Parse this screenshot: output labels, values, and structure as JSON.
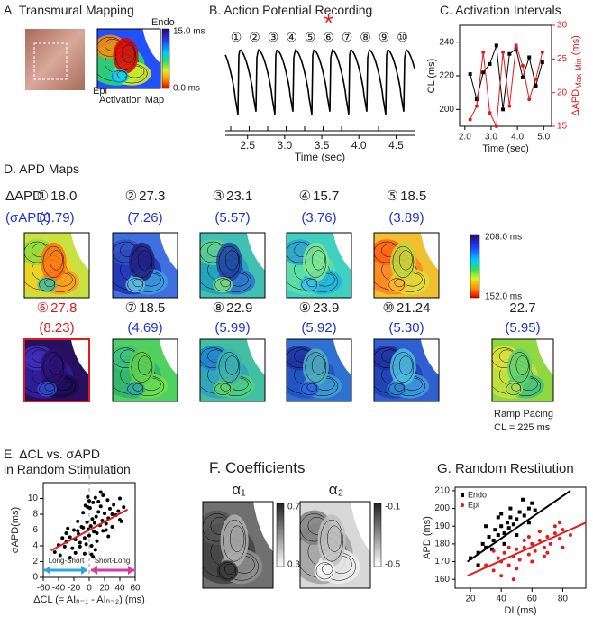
{
  "panel_a": {
    "title": "A. Transmural Mapping",
    "endo": "Endo",
    "epi": "Epi",
    "map_label": "Activation Map",
    "scale_max": "15.0 ms",
    "scale_min": "0.0 ms"
  },
  "panel_b": {
    "title": "B. Action Potential Recording",
    "beats": [
      "①",
      "②",
      "③",
      "④",
      "⑤",
      "⑥",
      "⑦",
      "⑧",
      "⑨",
      "⑩"
    ],
    "marker": "*",
    "marker_beat": 5,
    "xlim": [
      2.2,
      4.75
    ],
    "xticks": [
      2.5,
      {
        "value": 3,
        "label": "3.0"
      },
      3.5,
      {
        "value": 4,
        "label": "4.0"
      },
      4.5
    ],
    "xlabel": "Time (sec)"
  },
  "panel_d": {
    "title": "D. APD Maps",
    "row_label": "ΔAPD",
    "row_sublabel": "(σAPD)",
    "scale_max": "208.0 ms",
    "scale_min": "152.0 ms",
    "maps": [
      {
        "beat": "①",
        "apd": "18.0",
        "sigma": "(3.79)"
      },
      {
        "beat": "②",
        "apd": "27.3",
        "sigma": "(7.26)"
      },
      {
        "beat": "③",
        "apd": "23.1",
        "sigma": "(5.57)"
      },
      {
        "beat": "④",
        "apd": "15.7",
        "sigma": "(3.76)"
      },
      {
        "beat": "⑤",
        "apd": "18.5",
        "sigma": "(3.89)"
      },
      {
        "beat": "⑥",
        "apd": "27.8",
        "sigma": "(8.23)",
        "highlight": true
      },
      {
        "beat": "⑦",
        "apd": "18.5",
        "sigma": "(4.69)"
      },
      {
        "beat": "⑧",
        "apd": "22.9",
        "sigma": "(5.99)"
      },
      {
        "beat": "⑨",
        "apd": "23.9",
        "sigma": "(5.92)"
      },
      {
        "beat": "⑩",
        "apd": "21.24",
        "sigma": "(5.30)"
      }
    ],
    "ramp": {
      "apd": "22.7",
      "sigma": "(5.95)",
      "label": "Ramp Pacing",
      "cl": "CL = 225 ms"
    }
  },
  "panel_f": {
    "title": "F. Coefficients",
    "maps": [
      {
        "label": "α₁",
        "scale_max": "0.7",
        "scale_min": "0.3"
      },
      {
        "label": "α₂",
        "scale_max": "-0.1",
        "scale_min": "-0.5"
      }
    ]
  },
  "chart_data": [
    {
      "type": "line",
      "title": "C. Activation Intervals",
      "xlabel": "Time (sec)",
      "ylabel": "CL (ms)",
      "y2label": "ΔAPD",
      "y2label_sub": "Max-Min",
      "y2label_unit": " (ms)",
      "x": [
        2.2,
        2.45,
        2.7,
        2.95,
        3.2,
        3.45,
        3.7,
        3.95,
        4.2,
        4.45,
        4.7,
        4.95
      ],
      "xlim": [
        1.8,
        5.3
      ],
      "xticks": [
        {
          "value": 2,
          "label": "2.0"
        },
        {
          "value": 3,
          "label": "3.0"
        },
        {
          "value": 4,
          "label": "4.0"
        },
        {
          "value": 5,
          "label": "5.0"
        }
      ],
      "ylim": [
        190,
        250
      ],
      "yticks": [
        200,
        220,
        240
      ],
      "y2lim": [
        15,
        30
      ],
      "y2ticks": [
        15,
        20,
        25,
        30
      ],
      "series": [
        {
          "color": "#000000",
          "marker": "square",
          "values": [
            221,
            206,
            222,
            227,
            238,
            200,
            233,
            236,
            219,
            231,
            214,
            228
          ]
        },
        {
          "color": "#e41a1c",
          "marker": "circle",
          "axis": "y2",
          "values": [
            16,
            18,
            26,
            17,
            15,
            26,
            18,
            27,
            24,
            19,
            22,
            26
          ]
        }
      ]
    },
    {
      "type": "scatter",
      "title": "E. ΔCL vs. σAPD",
      "subtitle": "in Random Stimulation",
      "xlabel": "ΔCL (= AIₙ₋₁ - AIₙ₋₂) (ms)",
      "ylabel": "σAPD(ms)",
      "xlim": [
        -60,
        60
      ],
      "xticks": [
        -60,
        -40,
        -20,
        0,
        20,
        40,
        60
      ],
      "ylim": [
        0,
        12
      ],
      "yticks": [
        0,
        2,
        4,
        6,
        8,
        10
      ],
      "annotations": [
        "Long-Short",
        "Short-Long"
      ],
      "series": [
        {
          "color": "#000000",
          "marker": "circle",
          "x": [
            -45,
            -40,
            -38,
            -35,
            -32,
            -30,
            -28,
            -25,
            -22,
            -20,
            -18,
            -15,
            -14,
            -12,
            -10,
            -8,
            -6,
            -5,
            -4,
            -3,
            -2,
            -1,
            0,
            1,
            2,
            3,
            4,
            5,
            6,
            7,
            8,
            9,
            10,
            12,
            14,
            15,
            17,
            18,
            20,
            22,
            24,
            25,
            27,
            30,
            32,
            35,
            38,
            40,
            42,
            45,
            -25,
            -18,
            -12,
            -6,
            -2,
            3,
            8,
            12,
            18,
            25,
            -30,
            -15,
            -8,
            0,
            5,
            10,
            15,
            22,
            30,
            40
          ],
          "values": [
            3.2,
            4.1,
            2.8,
            5.0,
            3.9,
            4.5,
            6.2,
            5.1,
            3.7,
            6.0,
            4.8,
            7.1,
            5.5,
            3.9,
            6.4,
            8.2,
            5.0,
            9.1,
            4.2,
            7.0,
            10.2,
            6.1,
            5.3,
            8.8,
            6.5,
            4.0,
            7.4,
            9.5,
            5.8,
            6.9,
            10.1,
            7.7,
            5.6,
            8.3,
            6.6,
            9.0,
            7.2,
            5.9,
            8.1,
            6.8,
            9.8,
            7.5,
            8.7,
            6.4,
            9.2,
            7.9,
            8.4,
            10.0,
            7.1,
            8.9,
            2.5,
            3.1,
            4.4,
            3.0,
            8.9,
            2.9,
            3.5,
            9.6,
            10.4,
            5.2,
            5.6,
            5.9,
            6.3,
            9.7,
            2.6,
            4.6,
            10.8,
            6.0,
            8.0,
            7.3
          ],
          "fit": {
            "color": "#e41a1c",
            "x": [
              -50,
              50
            ],
            "values": [
              3.4,
              8.6
            ]
          }
        }
      ]
    },
    {
      "type": "scatter",
      "title": "G. Random Restitution",
      "xlabel": "DI (ms)",
      "ylabel": "APD (ms)",
      "legend": "upper left",
      "xlim": [
        10,
        95
      ],
      "xticks": [
        20,
        40,
        60,
        80
      ],
      "ylim": [
        155,
        212
      ],
      "yticks": [
        160,
        170,
        180,
        190,
        200,
        210
      ],
      "series": [
        {
          "name": "Endo",
          "color": "#000000",
          "marker": "square",
          "x": [
            20,
            25,
            28,
            30,
            32,
            35,
            36,
            38,
            40,
            42,
            44,
            45,
            46,
            48,
            50,
            52,
            55,
            58,
            60,
            62,
            30,
            34,
            38,
            42,
            46,
            50,
            54,
            58,
            25,
            40
          ],
          "values": [
            172,
            175,
            180,
            178,
            184,
            182,
            188,
            185,
            190,
            186,
            192,
            189,
            195,
            191,
            194,
            198,
            196,
            200,
            203,
            199,
            190,
            177,
            195,
            180,
            200,
            185,
            205,
            192,
            168,
            197
          ],
          "fit": {
            "x": [
              18,
              85
            ],
            "values": [
              170,
              210
            ]
          }
        },
        {
          "name": "Epi",
          "color": "#e41a1c",
          "marker": "circle",
          "x": [
            30,
            35,
            38,
            40,
            42,
            45,
            48,
            50,
            52,
            55,
            58,
            60,
            62,
            65,
            68,
            70,
            72,
            75,
            78,
            80,
            85,
            40,
            45,
            50,
            55,
            60,
            65,
            70,
            75,
            80,
            35,
            48,
            58,
            68,
            78
          ],
          "values": [
            168,
            165,
            172,
            170,
            175,
            168,
            173,
            177,
            171,
            178,
            174,
            180,
            176,
            182,
            178,
            184,
            180,
            186,
            183,
            188,
            185,
            162,
            178,
            166,
            182,
            170,
            187,
            175,
            190,
            178,
            176,
            160,
            184,
            173,
            192
          ],
          "fit": {
            "x": [
              18,
              95
            ],
            "values": [
              162,
              192
            ]
          }
        }
      ]
    }
  ]
}
